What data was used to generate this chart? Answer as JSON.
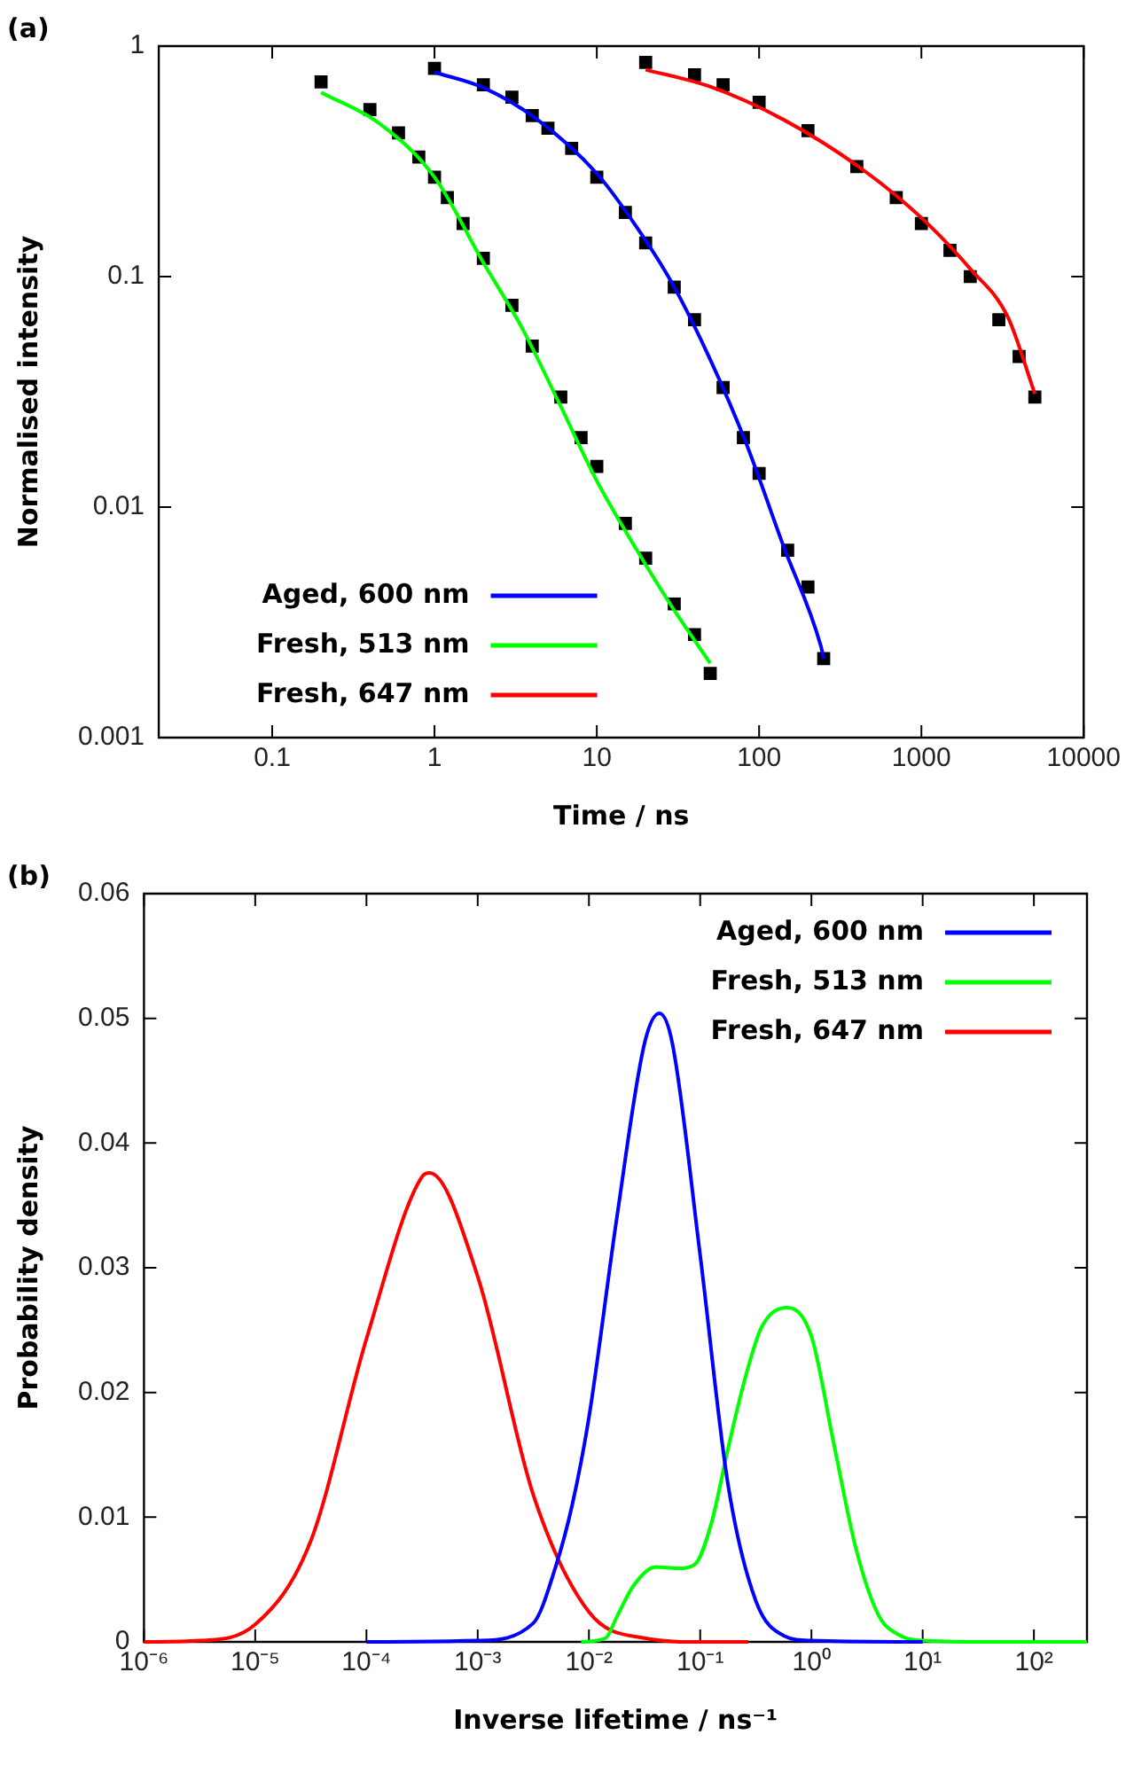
{
  "chart_data": [
    {
      "type": "line",
      "title": "(a)",
      "xlabel": "Time / ns",
      "ylabel": "Normalised intensity",
      "log": "xy",
      "xlim": [
        0.02,
        10000
      ],
      "ylim": [
        0.001,
        1
      ],
      "xticks": [
        0.1,
        1,
        10,
        100,
        1000,
        10000
      ],
      "yticks": [
        0.001,
        0.01,
        0.1,
        1
      ],
      "grid": false,
      "legend": "bottom left",
      "series": [
        {
          "type": "scatter",
          "marker": "square",
          "color": "#000000",
          "x": [
            0.2,
            0.4,
            0.6,
            0.8,
            1,
            1.2,
            1.5,
            2,
            3,
            4,
            6,
            8,
            10,
            15,
            20,
            30,
            40,
            50
          ],
          "values": [
            0.7,
            0.53,
            0.42,
            0.33,
            0.27,
            0.22,
            0.17,
            0.12,
            0.075,
            0.05,
            0.03,
            0.02,
            0.015,
            0.0085,
            0.006,
            0.0038,
            0.0028,
            0.0019
          ]
        },
        {
          "type": "scatter",
          "marker": "square",
          "color": "#000000",
          "x": [
            1,
            2,
            3,
            4,
            5,
            7,
            10,
            15,
            20,
            30,
            40,
            60,
            80,
            100,
            150,
            200,
            250
          ],
          "values": [
            0.8,
            0.68,
            0.6,
            0.5,
            0.44,
            0.36,
            0.27,
            0.19,
            0.14,
            0.09,
            0.065,
            0.033,
            0.02,
            0.014,
            0.0065,
            0.0045,
            0.0022
          ]
        },
        {
          "type": "scatter",
          "marker": "square",
          "color": "#000000",
          "x": [
            20,
            40,
            60,
            100,
            200,
            400,
            700,
            1000,
            1500,
            2000,
            3000,
            4000,
            5000
          ],
          "values": [
            0.85,
            0.75,
            0.68,
            0.57,
            0.43,
            0.3,
            0.22,
            0.17,
            0.13,
            0.1,
            0.065,
            0.045,
            0.03
          ]
        },
        {
          "name": "Aged, 600 nm",
          "marker": "none",
          "color": "#0000ff",
          "x": [
            1,
            2,
            4.3,
            10,
            17,
            29,
            49,
            83,
            141,
            240,
            250
          ],
          "values": [
            0.77,
            0.66,
            0.48,
            0.28,
            0.17,
            0.094,
            0.045,
            0.019,
            0.0068,
            0.0025,
            0.0022
          ]
        },
        {
          "name": "Fresh, 513 nm",
          "marker": "none",
          "color": "#00ff00",
          "x": [
            0.2,
            0.46,
            1,
            2,
            3.5,
            5.9,
            10,
            17,
            29,
            50
          ],
          "values": [
            0.63,
            0.46,
            0.27,
            0.115,
            0.059,
            0.028,
            0.013,
            0.0068,
            0.0037,
            0.0021
          ]
        },
        {
          "name": "Fresh, 647 nm",
          "marker": "none",
          "color": "#ff0000",
          "x": [
            20,
            49,
            141,
            410,
            1000,
            2000,
            3400,
            5000
          ],
          "values": [
            0.79,
            0.67,
            0.48,
            0.3,
            0.18,
            0.108,
            0.067,
            0.031
          ]
        }
      ]
    },
    {
      "type": "line",
      "title": "(b)",
      "xlabel": "Inverse lifetime / ns⁻¹",
      "ylabel": "Probability density",
      "log": "x",
      "xlim": [
        1e-06,
        300
      ],
      "ylim": [
        0,
        0.06
      ],
      "xticks": [
        {
          "value": 1e-06,
          "label": "10⁻⁶"
        },
        {
          "value": 1e-05,
          "label": "10⁻⁵"
        },
        {
          "value": 0.0001,
          "label": "10⁻⁴"
        },
        {
          "value": 0.001,
          "label": "10⁻³"
        },
        {
          "value": 0.01,
          "label": "10⁻²"
        },
        {
          "value": 0.1,
          "label": "10⁻¹"
        },
        {
          "value": 1,
          "label": "10⁰"
        },
        {
          "value": 10,
          "label": "10¹"
        },
        {
          "value": 100,
          "label": "10²"
        }
      ],
      "yticks": [
        0,
        0.01,
        0.02,
        0.03,
        0.04,
        0.05,
        0.06
      ],
      "grid": false,
      "legend": "top right",
      "series": [
        {
          "name": "Aged, 600 nm",
          "marker": "none",
          "color": "#0000ff",
          "x": [
            0.0001,
            0.001,
            0.00316,
            0.00501,
            0.00708,
            0.01,
            0.0178,
            0.0316,
            0.043,
            0.0562,
            0.1,
            0.178,
            0.316,
            0.562,
            1,
            10
          ],
          "values": [
            0,
            0.0001,
            0.0015,
            0.006,
            0.011,
            0.018,
            0.034,
            0.048,
            0.0504,
            0.048,
            0.031,
            0.0126,
            0.0033,
            0.0005,
            0.0001,
            0
          ]
        },
        {
          "name": "Fresh, 513 nm",
          "marker": "none",
          "color": "#00ff00",
          "x": [
            0.0085,
            0.0141,
            0.0178,
            0.0251,
            0.0398,
            0.0631,
            0.0891,
            0.126,
            0.178,
            0.251,
            0.355,
            0.603,
            1,
            1.58,
            2.51,
            3.98,
            6.31,
            10,
            31.6,
            300
          ],
          "values": [
            0,
            0.0003,
            0.002,
            0.0045,
            0.006,
            0.0059,
            0.0062,
            0.0095,
            0.0155,
            0.021,
            0.0252,
            0.0268,
            0.0245,
            0.016,
            0.0075,
            0.0022,
            0.0005,
            0.0001,
            0,
            0
          ]
        },
        {
          "name": "Fresh, 647 nm",
          "marker": "none",
          "color": "#ff0000",
          "x": [
            1e-06,
            3.16e-06,
            1e-05,
            3.16e-05,
            0.0001,
            0.000316,
            0.00037,
            0.001,
            0.00316,
            0.01,
            0.0316,
            0.1,
            0.27
          ],
          "values": [
            0,
            0.0001,
            0.0014,
            0.0081,
            0.0243,
            0.0373,
            0.0376,
            0.0293,
            0.0118,
            0.0024,
            0.0003,
            0,
            0
          ]
        }
      ]
    }
  ]
}
